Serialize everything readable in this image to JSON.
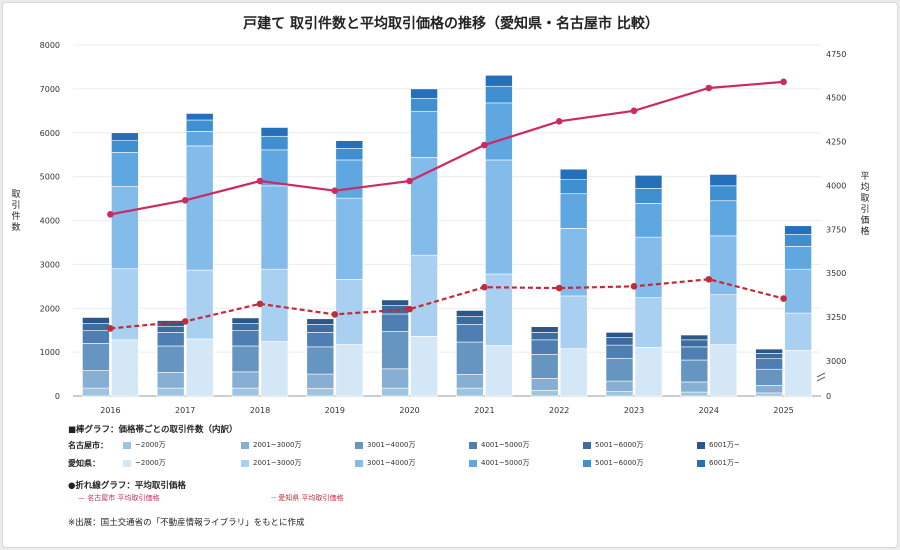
{
  "chart_data": {
    "type": "bar+line",
    "title": "戸建て 取引件数と平均取引価格の推移（愛知県・名古屋市 比較）",
    "categories": [
      "2016",
      "2017",
      "2018",
      "2019",
      "2020",
      "2021",
      "2022",
      "2023",
      "2024",
      "2025"
    ],
    "y_left": {
      "label": "取引件数",
      "ylim": [
        0,
        8000
      ],
      "ticks": [
        0,
        1000,
        2000,
        3000,
        4000,
        5000,
        6000,
        7000,
        8000
      ]
    },
    "y_right": {
      "label": "平均取引価格",
      "ylim": [
        2800,
        4800
      ],
      "ticks": [
        3000,
        3250,
        3500,
        3750,
        4000,
        4250,
        4500,
        4750
      ],
      "axis_break": true
    },
    "bar_groups": [
      {
        "group": "名古屋市",
        "segment_labels": [
          "~2000万",
          "2001~3000万",
          "3001~4000万",
          "4001~5000万",
          "5001~6000万",
          "6001万~"
        ],
        "colors": [
          "#9ec4e0",
          "#86afd3",
          "#6795c2",
          "#4f7fb2",
          "#3c6ca0",
          "#2b5889"
        ],
        "values": [
          [
            180,
            400,
            620,
            290,
            160,
            140
          ],
          [
            180,
            360,
            600,
            310,
            140,
            130
          ],
          [
            180,
            370,
            590,
            350,
            160,
            130
          ],
          [
            170,
            330,
            620,
            330,
            180,
            130
          ],
          [
            180,
            440,
            850,
            400,
            190,
            130
          ],
          [
            180,
            310,
            740,
            400,
            180,
            140
          ],
          [
            130,
            270,
            550,
            330,
            170,
            130
          ],
          [
            100,
            240,
            520,
            300,
            170,
            120
          ],
          [
            90,
            230,
            500,
            300,
            160,
            110
          ],
          [
            70,
            170,
            370,
            240,
            120,
            100
          ]
        ]
      },
      {
        "group": "愛知県",
        "segment_labels": [
          "~2000万",
          "2001~3000万",
          "3001~4000万",
          "4001~5000万",
          "5001~6000万",
          "6001万~"
        ],
        "colors": [
          "#d4e7f6",
          "#a9d0f0",
          "#83bbea",
          "#5ea7e0",
          "#3f8fd1",
          "#2570bb"
        ],
        "values": [
          [
            1280,
            1620,
            1880,
            770,
            270,
            180
          ],
          [
            1300,
            1570,
            2830,
            330,
            260,
            150
          ],
          [
            1240,
            1650,
            1900,
            820,
            310,
            200
          ],
          [
            1180,
            1480,
            1850,
            870,
            260,
            180
          ],
          [
            1360,
            1850,
            2230,
            1050,
            290,
            220
          ],
          [
            1150,
            1630,
            2600,
            1300,
            380,
            250
          ],
          [
            1080,
            1200,
            1540,
            790,
            320,
            240
          ],
          [
            1110,
            1130,
            1380,
            770,
            340,
            300
          ],
          [
            1170,
            1140,
            1340,
            800,
            340,
            260
          ],
          [
            1040,
            850,
            1000,
            520,
            270,
            200
          ]
        ]
      }
    ],
    "lines": [
      {
        "name": "名古屋市 平均取引価格",
        "color": "#cc2a63",
        "style": "solid",
        "values": [
          3835,
          3915,
          4025,
          3970,
          4025,
          4230,
          4365,
          4425,
          4555,
          4590
        ]
      },
      {
        "name": "愛知県 平均取引価格",
        "color": "#c42b39",
        "style": "dashed",
        "values": [
          3185,
          3225,
          3325,
          3265,
          3295,
          3420,
          3415,
          3425,
          3465,
          3355
        ]
      }
    ]
  },
  "legend": {
    "bar_title": "■棒グラフ：価格帯ごとの取引件数（内訳）",
    "nagoya_label": "名古屋市：",
    "aichi_label": "愛知県：",
    "line_title": "●折れ線グラフ：平均取引価格",
    "nagoya_line": "— 名古屋市 平均取引価格",
    "aichi_line": "-- 愛知県 平均取引価格"
  },
  "source": "※出展：国土交通省の「不動産情報ライブラリ」をもとに作成"
}
